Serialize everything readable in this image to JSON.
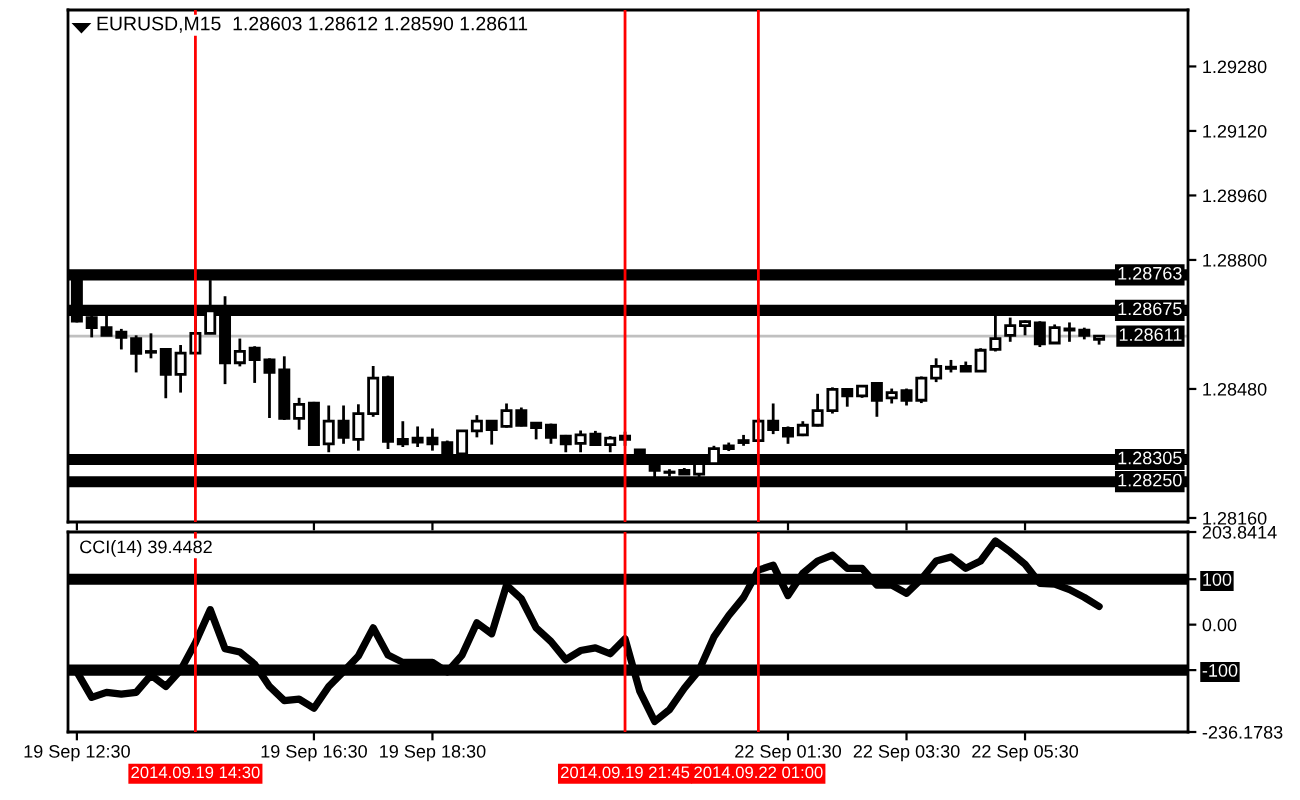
{
  "chart_data": [
    {
      "type": "candlestick",
      "title": "EURUSD,M15  1.28603 1.28612 1.28590 1.28611",
      "tick_labels": "y",
      "categories": [
        "19 Sep 12:30",
        null,
        null,
        null,
        null,
        null,
        null,
        null,
        "2014.09.19 14:30",
        null,
        null,
        null,
        null,
        null,
        null,
        null,
        "19 Sep 16:30",
        null,
        null,
        null,
        null,
        null,
        null,
        null,
        "19 Sep 18:30",
        null,
        null,
        null,
        null,
        null,
        null,
        null,
        null,
        null,
        null,
        null,
        null,
        "2014.09.19 21:45",
        null,
        null,
        null,
        null,
        null,
        null,
        null,
        null,
        "2014.09.22 01:00",
        null,
        "22 Sep 01:30",
        null,
        null,
        null,
        null,
        null,
        null,
        null,
        "22 Sep 03:30",
        null,
        null,
        null,
        null,
        null,
        null,
        null,
        "22 Sep 05:30",
        null,
        null,
        null,
        null,
        null
      ],
      "ohlc": [
        [
          1.28771,
          1.28774,
          1.28645,
          1.28648
        ],
        [
          1.28657,
          1.28665,
          1.28608,
          1.28632
        ],
        [
          1.28632,
          1.28665,
          1.28613,
          1.28613
        ],
        [
          1.28621,
          1.28629,
          1.28578,
          1.28608
        ],
        [
          1.28605,
          1.28613,
          1.28521,
          1.28568
        ],
        [
          1.28573,
          1.28618,
          1.28556,
          1.28571
        ],
        [
          1.28578,
          1.28581,
          1.28457,
          1.28516
        ],
        [
          1.28516,
          1.28589,
          1.28471,
          1.28569
        ],
        [
          1.28569,
          1.28665,
          1.28568,
          1.28618
        ],
        [
          1.28618,
          1.2875,
          1.28616,
          1.28674
        ],
        [
          1.28665,
          1.2871,
          1.28492,
          1.28545
        ],
        [
          1.28545,
          1.28605,
          1.28536,
          1.28573
        ],
        [
          1.28581,
          1.28586,
          1.28495,
          1.28553
        ],
        [
          1.28552,
          1.28556,
          1.28408,
          1.28521
        ],
        [
          1.28527,
          1.28561,
          1.28403,
          1.28407
        ],
        [
          1.28407,
          1.28458,
          1.28379,
          1.28442
        ],
        [
          1.28445,
          1.28448,
          1.28339,
          1.28342
        ],
        [
          1.28344,
          1.28439,
          1.28323,
          1.284
        ],
        [
          1.284,
          1.28439,
          1.28344,
          1.2836
        ],
        [
          1.28355,
          1.28442,
          1.28327,
          1.28419
        ],
        [
          1.28419,
          1.28537,
          1.28411,
          1.28507
        ],
        [
          1.28508,
          1.28513,
          1.28331,
          1.2835
        ],
        [
          1.28355,
          1.284,
          1.28336,
          1.28344
        ],
        [
          1.28358,
          1.28387,
          1.28336,
          1.28348
        ],
        [
          1.28358,
          1.28382,
          1.28327,
          1.28344
        ],
        [
          1.28347,
          1.28352,
          1.28316,
          1.28319
        ],
        [
          1.28319,
          1.28377,
          1.28318,
          1.28376
        ],
        [
          1.28376,
          1.28415,
          1.2836,
          1.284
        ],
        [
          1.284,
          1.28403,
          1.28342,
          1.28379
        ],
        [
          1.28387,
          1.28444,
          1.28384,
          1.28426
        ],
        [
          1.28426,
          1.28434,
          1.28387,
          1.2839
        ],
        [
          1.28395,
          1.28398,
          1.28355,
          1.28384
        ],
        [
          1.2839,
          1.28394,
          1.28344,
          1.2836
        ],
        [
          1.28363,
          1.28366,
          1.28323,
          1.28344
        ],
        [
          1.28345,
          1.28377,
          1.28323,
          1.28366
        ],
        [
          1.28368,
          1.28376,
          1.28339,
          1.28342
        ],
        [
          1.28342,
          1.28363,
          1.28323,
          1.28358
        ],
        [
          1.28363,
          1.28374,
          1.28339,
          1.28355
        ],
        [
          1.28329,
          1.28331,
          1.28315,
          1.28319
        ],
        [
          1.28303,
          1.2831,
          1.28258,
          1.28278
        ],
        [
          1.28274,
          1.28281,
          1.28263,
          1.28273
        ],
        [
          1.28278,
          1.28284,
          1.28268,
          1.28269
        ],
        [
          1.28269,
          1.2831,
          1.28258,
          1.28295
        ],
        [
          1.28295,
          1.28339,
          1.28294,
          1.28332
        ],
        [
          1.28339,
          1.28347,
          1.28326,
          1.28332
        ],
        [
          1.28347,
          1.28366,
          1.28339,
          1.28352
        ],
        [
          1.28352,
          1.28407,
          1.2835,
          1.284
        ],
        [
          1.284,
          1.28444,
          1.28368,
          1.28379
        ],
        [
          1.28382,
          1.28387,
          1.28344,
          1.28363
        ],
        [
          1.28366,
          1.284,
          1.28363,
          1.2839
        ],
        [
          1.2839,
          1.28468,
          1.28387,
          1.28426
        ],
        [
          1.28426,
          1.28484,
          1.28419,
          1.28479
        ],
        [
          1.28479,
          1.28481,
          1.28436,
          1.28463
        ],
        [
          1.28463,
          1.28489,
          1.28458,
          1.28487
        ],
        [
          1.28494,
          1.28497,
          1.28411,
          1.28452
        ],
        [
          1.28458,
          1.28481,
          1.28444,
          1.28471
        ],
        [
          1.28476,
          1.28481,
          1.28439,
          1.28452
        ],
        [
          1.28452,
          1.28511,
          1.28445,
          1.28507
        ],
        [
          1.28507,
          1.28556,
          1.28497,
          1.28536
        ],
        [
          1.28531,
          1.28552,
          1.28521,
          1.28534
        ],
        [
          1.28536,
          1.28548,
          1.28523,
          1.28524
        ],
        [
          1.28524,
          1.28581,
          1.28523,
          1.28576
        ],
        [
          1.28578,
          1.28666,
          1.28573,
          1.28605
        ],
        [
          1.28613,
          1.28657,
          1.28597,
          1.28637
        ],
        [
          1.28637,
          1.2865,
          1.28613,
          1.28647
        ],
        [
          1.28644,
          1.28648,
          1.28584,
          1.28592
        ],
        [
          1.28594,
          1.2864,
          1.28592,
          1.28632
        ],
        [
          1.28626,
          1.28645,
          1.28597,
          1.28629
        ],
        [
          1.28626,
          1.28632,
          1.28603,
          1.28613
        ],
        [
          1.28603,
          1.28612,
          1.2859,
          1.28611
        ]
      ],
      "ylim": [
        1.2815,
        1.2942
      ],
      "yticks": [
        {
          "value": 1.2816,
          "label": "1.28160"
        },
        {
          "value": 1.2848,
          "label": "1.28480"
        },
        {
          "value": 1.288,
          "label": "1.28800"
        },
        {
          "value": 1.2896,
          "label": "1.28960"
        },
        {
          "value": 1.2912,
          "label": "1.29120"
        },
        {
          "value": 1.2928,
          "label": "1.29280"
        }
      ],
      "ref_lines": [
        {
          "axis": "y",
          "value": 1.28763,
          "label": "1.28763",
          "color": "#000000"
        },
        {
          "axis": "y",
          "value": 1.28675,
          "label": "1.28675",
          "color": "#000000"
        },
        {
          "axis": "y",
          "value": 1.28611,
          "label": "1.28611",
          "color": "#c0c0c0"
        },
        {
          "axis": "y",
          "value": 1.28305,
          "label": "1.28305",
          "color": "#000000"
        },
        {
          "axis": "y",
          "value": 1.2825,
          "label": "1.28250",
          "color": "#000000"
        },
        {
          "axis": "x",
          "value": "2014.09.19 14:30",
          "color": "#ff0000"
        },
        {
          "axis": "x",
          "value": "2014.09.19 21:45",
          "color": "#ff0000"
        },
        {
          "axis": "x",
          "value": "2014.09.22 01:00",
          "color": "#ff0000"
        }
      ]
    },
    {
      "type": "line",
      "title": "CCI(14) 39.4482",
      "categories": [
        "19 Sep 12:30",
        null,
        null,
        null,
        null,
        null,
        null,
        null,
        "2014.09.19 14:30",
        null,
        null,
        null,
        null,
        null,
        null,
        null,
        "19 Sep 16:30",
        null,
        null,
        null,
        null,
        null,
        null,
        null,
        "19 Sep 18:30",
        null,
        null,
        null,
        null,
        null,
        null,
        null,
        null,
        null,
        null,
        null,
        null,
        "2014.09.19 21:45",
        null,
        null,
        null,
        null,
        null,
        null,
        null,
        null,
        "2014.09.22 01:00",
        null,
        "22 Sep 01:30",
        null,
        null,
        null,
        null,
        null,
        null,
        null,
        "22 Sep 03:30",
        null,
        null,
        null,
        null,
        null,
        null,
        null,
        "22 Sep 05:30",
        null,
        null,
        null,
        null,
        null
      ],
      "series": [
        {
          "color": "#000000",
          "values": [
            -104,
            -160,
            -149,
            -153,
            -149,
            -111,
            -136,
            -100,
            -40,
            33,
            -53,
            -60,
            -87,
            -136,
            -167,
            -164,
            -184,
            -136,
            -103,
            -69,
            -7,
            -67,
            -83,
            -83,
            -83,
            -104,
            -67,
            4,
            -20,
            87,
            57,
            -7,
            -37,
            -77,
            -57,
            -51,
            -64,
            -31,
            -147,
            -213,
            -187,
            -140,
            -100,
            -27,
            20,
            60,
            120,
            131,
            64,
            113,
            140,
            153,
            124,
            124,
            87,
            87,
            69,
            100,
            140,
            149,
            124,
            140,
            184,
            160,
            133,
            91,
            89,
            77,
            60,
            40
          ]
        }
      ],
      "ylim": [
        -236.1783,
        203.8414
      ],
      "yticks": [
        -236.1783,
        -100,
        {
          "value": 0,
          "label": "0.00"
        },
        100,
        203.8414
      ],
      "ref_lines": [
        {
          "axis": "y",
          "value": 100,
          "color": "#000000"
        },
        {
          "axis": "y",
          "value": -100,
          "color": "#000000"
        },
        {
          "axis": "x",
          "value": "2014.09.19 14:30",
          "color": "#ff0000"
        },
        {
          "axis": "x",
          "value": "2014.09.19 21:45",
          "color": "#ff0000"
        },
        {
          "axis": "x",
          "value": "2014.09.22 01:00",
          "color": "#ff0000"
        }
      ]
    }
  ]
}
